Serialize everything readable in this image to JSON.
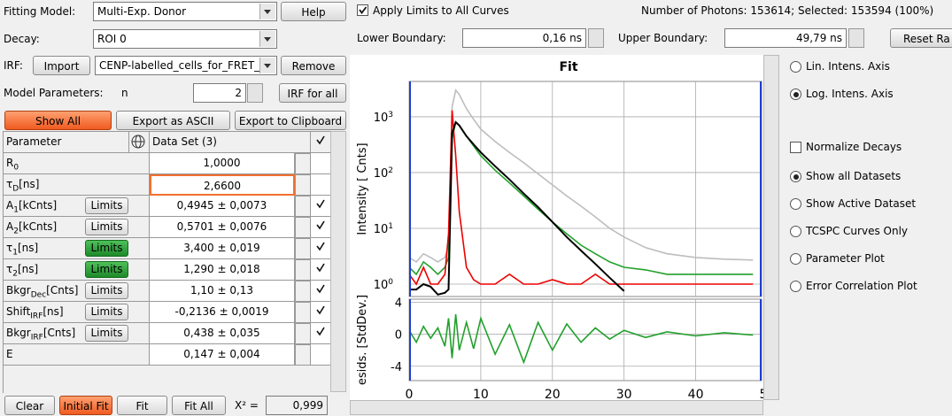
{
  "header": {
    "fitting_model_label": "Fitting Model:",
    "fitting_model": "Multi-Exp. Donor",
    "help": "Help",
    "apply_limits": "Apply Limits to All Curves",
    "apply_limits_checked": true,
    "photons": "Number of Photons: 153614; Selected: 153594 (100%)",
    "decay_label": "Decay:",
    "decay": "ROI 0",
    "lower_label": "Lower Boundary:",
    "lower": "0,16 ns",
    "upper_label": "Upper Boundary:",
    "upper": "49,79 ns",
    "reset": "Reset Ra"
  },
  "irf": {
    "label": "IRF:",
    "import": "Import",
    "file": "CENP-labelled_cells_for_FRET_",
    "remove": "Remove"
  },
  "model": {
    "label": "Model Parameters:",
    "n_label": "n",
    "n": "2",
    "irf_for_all": "IRF for all"
  },
  "toolbar": {
    "show_all": "Show All",
    "export_ascii": "Export as ASCII",
    "export_clipboard": "Export to Clipboard"
  },
  "parameters": {
    "header": {
      "name": "Parameter",
      "value": "Data Set (3)"
    },
    "rows": [
      {
        "name": "R",
        "sub": "0",
        "value": "1,0000"
      },
      {
        "name": "τ",
        "sub": "D",
        "unit": "[ns]",
        "value": "2,6600",
        "selected": true
      },
      {
        "name": "A",
        "sub": "1",
        "unit": "[kCnts]",
        "limits": "Limits",
        "value": "0,4945 ± 0,0073",
        "fitted": true
      },
      {
        "name": "A",
        "sub": "2",
        "unit": "[kCnts]",
        "limits": "Limits",
        "value": "0,5701 ± 0,0076",
        "fitted": true
      },
      {
        "name": "τ",
        "sub": "1",
        "unit": "[ns]",
        "limits": "Limits",
        "limits_active": true,
        "value": "3,400 ± 0,019",
        "fitted": true
      },
      {
        "name": "τ",
        "sub": "2",
        "unit": "[ns]",
        "limits": "Limits",
        "limits_active": true,
        "value": "1,290 ± 0,018",
        "fitted": true
      },
      {
        "name": "Bkgr",
        "sub": "Dec",
        "unit": "[Cnts]",
        "limits": "Limits",
        "value": "1,10 ± 0,13",
        "fitted": true
      },
      {
        "name": "Shift",
        "sub": "IRF",
        "unit": "[ns]",
        "limits": "Limits",
        "value": "-0,2136 ± 0,0019",
        "fitted": true
      },
      {
        "name": "Bkgr",
        "sub": "IRF",
        "unit": "[Cnts]",
        "limits": "Limits",
        "value": "0,438 ± 0,035",
        "fitted": true
      },
      {
        "name": "E",
        "value": "0,147 ± 0,004"
      }
    ]
  },
  "footer": {
    "clear": "Clear",
    "initial_fit": "Initial Fit",
    "fit": "Fit",
    "fit_all": "Fit All",
    "chi_label": "X² =",
    "chi": "0,999"
  },
  "options": [
    {
      "label": "Lin. Intens. Axis",
      "type": "radio",
      "checked": false
    },
    {
      "label": "Log. Intens. Axis",
      "type": "radio",
      "checked": true
    },
    {
      "label": "Normalize Decays",
      "type": "checkbox",
      "checked": false
    },
    {
      "label": "Show all Datasets",
      "type": "radio",
      "checked": true
    },
    {
      "label": "Show Active Dataset",
      "type": "radio",
      "checked": false
    },
    {
      "label": "TCSPC Curves Only",
      "type": "radio",
      "checked": false
    },
    {
      "label": "Parameter Plot",
      "type": "radio",
      "checked": false
    },
    {
      "label": "Error Correlation Plot",
      "type": "radio",
      "checked": false
    }
  ],
  "chart_data": [
    {
      "type": "line",
      "title": "Fit",
      "y_label": "Intensity [ Cnts]",
      "yscale": "log",
      "grid": true,
      "x": [
        0,
        1,
        2,
        3,
        4,
        5,
        5.5,
        6,
        6.5,
        7,
        8,
        9,
        10,
        12,
        14,
        16,
        18,
        20,
        22,
        24,
        26,
        28,
        30,
        33,
        36,
        40,
        44,
        48
      ],
      "xlim": [
        0,
        49.2
      ],
      "ylim": [
        0.6,
        4300
      ],
      "yticks": [
        {
          "value": 1,
          "label": "10",
          "exp": "0"
        },
        {
          "value": 10,
          "label": "10",
          "exp": "1"
        },
        {
          "value": 100,
          "label": "10",
          "exp": "2"
        },
        {
          "value": 1000,
          "label": "10",
          "exp": "3"
        }
      ],
      "series": [
        {
          "color": "#bdbdbd",
          "values": [
            3,
            2.5,
            3.5,
            3,
            2.5,
            3,
            5,
            1500,
            3000,
            2500,
            1400,
            900,
            600,
            360,
            230,
            150,
            95,
            60,
            38,
            25,
            16,
            10,
            7,
            4.5,
            3.5,
            3,
            2.8,
            2.7
          ]
        },
        {
          "color": "#22a02c",
          "values": [
            2,
            1.5,
            2.5,
            2,
            1.5,
            2,
            3,
            400,
            800,
            700,
            450,
            300,
            200,
            110,
            65,
            38,
            22,
            13,
            8,
            5,
            3.5,
            2.5,
            2,
            1.8,
            1.5,
            1.5,
            1.5,
            1.5
          ]
        },
        {
          "color": "#ee0000",
          "values": [
            1.5,
            1,
            2,
            1,
            1,
            1.5,
            8,
            1300,
            200,
            20,
            2,
            1.2,
            1,
            1,
            1.5,
            1,
            1,
            1.2,
            1,
            1,
            1.5,
            1,
            1,
            1,
            1,
            1,
            1,
            1
          ]
        },
        {
          "color": "#000000",
          "values": [
            0.8,
            0.8,
            1,
            0.9,
            0.65,
            0.7,
            0.8,
            500,
            800,
            700,
            450,
            320,
            230,
            130,
            75,
            42,
            24,
            13,
            7,
            4,
            2.3,
            1.3,
            0.75,
            null,
            null,
            null,
            null,
            null
          ]
        }
      ]
    },
    {
      "type": "line",
      "y_label": "esids. [StdDev.]",
      "grid": true,
      "x": [
        0,
        1,
        2,
        3,
        4,
        5,
        5.5,
        6,
        6.5,
        7,
        8,
        9,
        10,
        12,
        14,
        16,
        18,
        20,
        22,
        24,
        26,
        28,
        30,
        33,
        36,
        40,
        44,
        48
      ],
      "xlim": [
        0,
        49.2
      ],
      "ylim": [
        -5.8,
        4.4
      ],
      "xticks": [
        0,
        10,
        20,
        30,
        40,
        {
          "value": 50,
          "label": "5"
        }
      ],
      "yticks": [
        4,
        0,
        -4
      ],
      "series": [
        {
          "color": "#22a02c",
          "values": [
            0.5,
            -1,
            1,
            -0.5,
            0.8,
            -1.5,
            2,
            -3,
            2.5,
            -2,
            1.5,
            -1.8,
            2,
            -2.5,
            1.2,
            -3.5,
            1.5,
            -2,
            1.3,
            -1,
            0.8,
            -0.6,
            0.5,
            -0.4,
            0.3,
            -0.2,
            0.2,
            -0.1
          ]
        }
      ]
    }
  ]
}
